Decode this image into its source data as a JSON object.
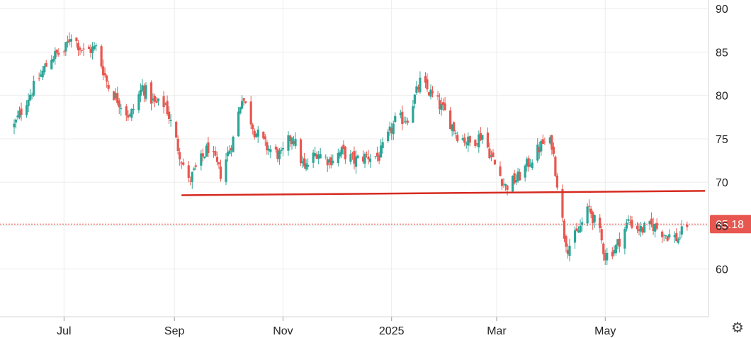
{
  "chart_data": {
    "type": "candlestick",
    "title": "",
    "xlabel": "",
    "ylabel": "",
    "ylim": [
      54.5,
      91
    ],
    "x_range": [
      "2024-06-03",
      "2025-06-28"
    ],
    "y_ticks": [
      60,
      65,
      70,
      75,
      80,
      85,
      90
    ],
    "x_ticks": [
      {
        "date": "2024-07-01",
        "label": "Jul"
      },
      {
        "date": "2024-09-01",
        "label": "Sep"
      },
      {
        "date": "2024-11-01",
        "label": "Nov"
      },
      {
        "date": "2025-01-01",
        "label": "2025"
      },
      {
        "date": "2025-03-01",
        "label": "Mar"
      },
      {
        "date": "2025-05-01",
        "label": "May"
      }
    ],
    "last_price": {
      "value": 65.18,
      "label": "65.18",
      "color": "#e8574f"
    },
    "trendline": {
      "start": {
        "date": "2024-09-05",
        "value": 68.5
      },
      "end": {
        "date": "2025-06-26",
        "value": 69.0
      },
      "color": "#d62a20"
    },
    "grid": true,
    "colors": {
      "up": "#2ba596",
      "down": "#e8574f"
    },
    "anchors": [
      [
        "2024-06-03",
        76.5
      ],
      [
        "2024-06-10",
        79.5
      ],
      [
        "2024-06-17",
        82.0
      ],
      [
        "2024-06-24",
        84.5
      ],
      [
        "2024-07-01",
        85.0
      ],
      [
        "2024-07-05",
        87.0
      ],
      [
        "2024-07-12",
        85.0
      ],
      [
        "2024-07-19",
        85.5
      ],
      [
        "2024-07-26",
        81.0
      ],
      [
        "2024-08-02",
        79.0
      ],
      [
        "2024-08-07",
        77.5
      ],
      [
        "2024-08-14",
        81.0
      ],
      [
        "2024-08-21",
        79.0
      ],
      [
        "2024-08-27",
        79.0
      ],
      [
        "2024-09-03",
        74.0
      ],
      [
        "2024-09-09",
        70.0
      ],
      [
        "2024-09-13",
        71.5
      ],
      [
        "2024-09-20",
        74.0
      ],
      [
        "2024-09-27",
        71.0
      ],
      [
        "2024-10-04",
        75.0
      ],
      [
        "2024-10-09",
        80.0
      ],
      [
        "2024-10-16",
        76.0
      ],
      [
        "2024-10-23",
        74.0
      ],
      [
        "2024-10-31",
        73.0
      ],
      [
        "2024-11-06",
        75.5
      ],
      [
        "2024-11-13",
        71.5
      ],
      [
        "2024-11-20",
        73.5
      ],
      [
        "2024-11-27",
        72.5
      ],
      [
        "2024-12-04",
        73.5
      ],
      [
        "2024-12-11",
        72.5
      ],
      [
        "2024-12-18",
        73.0
      ],
      [
        "2024-12-25",
        73.0
      ],
      [
        "2025-01-03",
        77.0
      ],
      [
        "2025-01-10",
        77.5
      ],
      [
        "2025-01-17",
        81.5
      ],
      [
        "2025-01-24",
        80.0
      ],
      [
        "2025-01-31",
        78.0
      ],
      [
        "2025-02-07",
        75.5
      ],
      [
        "2025-02-14",
        74.5
      ],
      [
        "2025-02-21",
        75.5
      ],
      [
        "2025-02-28",
        72.0
      ],
      [
        "2025-03-06",
        69.5
      ],
      [
        "2025-03-13",
        70.5
      ],
      [
        "2025-03-20",
        72.5
      ],
      [
        "2025-03-27",
        74.5
      ],
      [
        "2025-04-01",
        74.5
      ],
      [
        "2025-04-04",
        70.0
      ],
      [
        "2025-04-08",
        64.0
      ],
      [
        "2025-04-10",
        62.5
      ],
      [
        "2025-04-15",
        64.0
      ],
      [
        "2025-04-22",
        67.0
      ],
      [
        "2025-04-28",
        64.0
      ],
      [
        "2025-05-01",
        61.5
      ],
      [
        "2025-05-07",
        62.5
      ],
      [
        "2025-05-14",
        65.5
      ],
      [
        "2025-05-21",
        64.5
      ],
      [
        "2025-05-28",
        65.0
      ],
      [
        "2025-06-04",
        64.0
      ],
      [
        "2025-06-11",
        63.5
      ],
      [
        "2025-06-16",
        65.18
      ]
    ]
  }
}
